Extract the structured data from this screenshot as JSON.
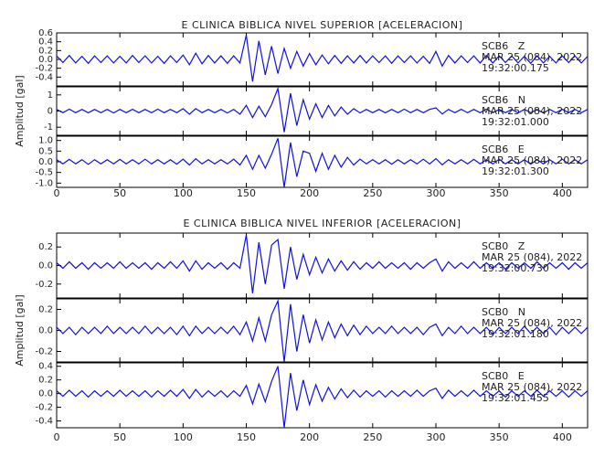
{
  "chart_data": [
    {
      "type": "line",
      "title": "E CLINICA BIBLICA NIVEL SUPERIOR [ACELERACION]",
      "ylabel": "Amplitud [gal]",
      "color": "#1010e0",
      "x": [
        0,
        5,
        10,
        15,
        20,
        25,
        30,
        35,
        40,
        45,
        50,
        55,
        60,
        65,
        70,
        75,
        80,
        85,
        90,
        95,
        100,
        105,
        110,
        115,
        120,
        125,
        130,
        135,
        140,
        145,
        150,
        155,
        160,
        165,
        170,
        175,
        180,
        185,
        190,
        195,
        200,
        205,
        210,
        215,
        220,
        225,
        230,
        235,
        240,
        245,
        250,
        255,
        260,
        265,
        270,
        275,
        280,
        285,
        290,
        295,
        300,
        305,
        310,
        315,
        320,
        325,
        330,
        335,
        340,
        345,
        350,
        355,
        360,
        365,
        370,
        375,
        380,
        385,
        390,
        395,
        400,
        405,
        410,
        415,
        420
      ],
      "xlim": [
        0,
        420
      ],
      "xticks": [
        0,
        50,
        100,
        150,
        200,
        250,
        300,
        350,
        400
      ],
      "panels": [
        {
          "lines": [
            "SCB6   Z",
            "MAR 25 (084), 2022",
            "19:32:00.175"
          ],
          "ylim": [
            -0.6,
            0.6
          ],
          "yticks": [
            -0.4,
            -0.2,
            {
              "value": 0,
              "label": "0.0"
            },
            0.2,
            0.4,
            0.6
          ],
          "values": [
            0.08,
            -0.07,
            0.09,
            -0.08,
            0.07,
            -0.09,
            0.08,
            -0.07,
            0.08,
            -0.08,
            0.07,
            -0.08,
            0.09,
            -0.07,
            0.08,
            -0.08,
            0.07,
            -0.09,
            0.08,
            -0.07,
            0.1,
            -0.12,
            0.14,
            -0.1,
            0.09,
            -0.08,
            0.08,
            -0.09,
            0.08,
            -0.08,
            0.55,
            -0.5,
            0.42,
            -0.35,
            0.3,
            -0.32,
            0.25,
            -0.2,
            0.18,
            -0.15,
            0.13,
            -0.12,
            0.1,
            -0.1,
            0.09,
            -0.09,
            0.08,
            -0.08,
            0.09,
            -0.08,
            0.08,
            -0.07,
            0.08,
            -0.09,
            0.08,
            -0.07,
            0.08,
            -0.08,
            0.07,
            -0.09,
            0.18,
            -0.15,
            0.09,
            -0.08,
            0.08,
            -0.07,
            0.08,
            -0.08,
            0.09,
            -0.08,
            0.08,
            -0.07,
            0.08,
            -0.08,
            0.07,
            -0.09,
            0.08,
            -0.08,
            0.07,
            -0.08,
            0.08,
            -0.07,
            0.08,
            -0.08,
            0.07
          ]
        },
        {
          "lines": [
            "SCB6   N",
            "MAR 25 (084), 2022",
            "19:32:01.000"
          ],
          "ylim": [
            -1.5,
            1.5
          ],
          "yticks": [
            -1,
            0,
            1
          ],
          "values": [
            0.1,
            -0.1,
            0.12,
            -0.1,
            0.1,
            -0.11,
            0.1,
            -0.1,
            0.1,
            -0.12,
            0.1,
            -0.1,
            0.11,
            -0.1,
            0.1,
            -0.1,
            0.12,
            -0.1,
            0.1,
            -0.1,
            0.15,
            -0.2,
            0.15,
            -0.1,
            0.1,
            -0.1,
            0.1,
            -0.12,
            0.1,
            -0.2,
            0.35,
            -0.4,
            0.3,
            -0.35,
            0.4,
            1.4,
            -1.3,
            1.1,
            -0.9,
            0.7,
            -0.5,
            0.45,
            -0.4,
            0.35,
            -0.3,
            0.25,
            -0.2,
            0.15,
            -0.12,
            0.1,
            -0.1,
            0.1,
            -0.11,
            0.1,
            -0.1,
            0.12,
            -0.1,
            0.1,
            -0.1,
            0.1,
            0.2,
            -0.18,
            0.1,
            -0.1,
            0.11,
            -0.1,
            0.1,
            -0.1,
            0.12,
            -0.1,
            0.1,
            -0.1,
            0.1,
            -0.11,
            0.1,
            -0.1,
            0.1,
            -0.12,
            0.1,
            -0.1,
            0.11,
            -0.1,
            0.1,
            -0.1,
            0.1
          ]
        },
        {
          "lines": [
            "SCB6   E",
            "MAR 25 (084), 2022",
            "19:32:01.300"
          ],
          "ylim": [
            -1.2,
            1.2
          ],
          "yticks": [
            {
              "value": -1,
              "label": "-1.0"
            },
            -0.5,
            {
              "value": 0,
              "label": "0.0"
            },
            0.5,
            {
              "value": 1,
              "label": "1.0"
            }
          ],
          "values": [
            0.1,
            -0.1,
            0.11,
            -0.1,
            0.1,
            -0.12,
            0.1,
            -0.1,
            0.1,
            -0.1,
            0.11,
            -0.1,
            0.1,
            -0.1,
            0.12,
            -0.1,
            0.1,
            -0.1,
            0.1,
            -0.11,
            0.12,
            -0.15,
            0.14,
            -0.1,
            0.1,
            -0.1,
            0.1,
            -0.1,
            0.12,
            -0.15,
            0.3,
            -0.35,
            0.3,
            -0.3,
            0.35,
            1.1,
            -1.2,
            0.9,
            -0.7,
            0.5,
            0.4,
            -0.45,
            0.4,
            -0.35,
            0.3,
            -0.25,
            0.2,
            -0.15,
            0.12,
            -0.1,
            0.1,
            -0.1,
            0.1,
            -0.11,
            0.1,
            -0.1,
            0.1,
            -0.1,
            0.12,
            -0.1,
            0.15,
            -0.14,
            0.1,
            -0.1,
            0.1,
            -0.1,
            0.11,
            -0.1,
            0.1,
            -0.1,
            0.12,
            -0.1,
            0.1,
            -0.1,
            0.1,
            -0.11,
            0.1,
            -0.1,
            0.1,
            -0.1,
            0.12,
            -0.1,
            0.1,
            -0.1,
            0.1
          ]
        }
      ]
    },
    {
      "type": "line",
      "title": "E CLINICA BIBLICA NIVEL INFERIOR [ACELERACION]",
      "ylabel": "Amplitud [gal]",
      "color": "#1010e0",
      "x": [
        0,
        5,
        10,
        15,
        20,
        25,
        30,
        35,
        40,
        45,
        50,
        55,
        60,
        65,
        70,
        75,
        80,
        85,
        90,
        95,
        100,
        105,
        110,
        115,
        120,
        125,
        130,
        135,
        140,
        145,
        150,
        155,
        160,
        165,
        170,
        175,
        180,
        185,
        190,
        195,
        200,
        205,
        210,
        215,
        220,
        225,
        230,
        235,
        240,
        245,
        250,
        255,
        260,
        265,
        270,
        275,
        280,
        285,
        290,
        295,
        300,
        305,
        310,
        315,
        320,
        325,
        330,
        335,
        340,
        345,
        350,
        355,
        360,
        365,
        370,
        375,
        380,
        385,
        390,
        395,
        400,
        405,
        410,
        415,
        420
      ],
      "xlim": [
        0,
        420
      ],
      "xticks": [
        0,
        50,
        100,
        150,
        200,
        250,
        300,
        350,
        400
      ],
      "panels": [
        {
          "lines": [
            "SCB0   Z",
            "MAR 25 (084), 2022",
            "19:32:00.730"
          ],
          "ylim": [
            -0.35,
            0.35
          ],
          "yticks": [
            -0.2,
            {
              "value": 0,
              "label": "0.0"
            },
            0.2
          ],
          "values": [
            0.03,
            -0.03,
            0.04,
            -0.03,
            0.03,
            -0.04,
            0.03,
            -0.03,
            0.03,
            -0.03,
            0.04,
            -0.03,
            0.03,
            -0.03,
            0.03,
            -0.04,
            0.03,
            -0.03,
            0.04,
            -0.03,
            0.05,
            -0.06,
            0.05,
            -0.04,
            0.03,
            -0.03,
            0.03,
            -0.04,
            0.03,
            -0.03,
            0.33,
            -0.3,
            0.25,
            -0.2,
            0.22,
            0.28,
            -0.25,
            0.2,
            -0.15,
            0.12,
            -0.1,
            0.09,
            -0.08,
            0.07,
            -0.06,
            0.05,
            -0.05,
            0.04,
            -0.04,
            0.03,
            -0.03,
            0.04,
            -0.03,
            0.03,
            -0.03,
            0.03,
            -0.04,
            0.03,
            -0.03,
            0.03,
            0.07,
            -0.06,
            0.04,
            -0.03,
            0.03,
            -0.03,
            0.04,
            -0.03,
            0.03,
            -0.03,
            0.03,
            -0.04,
            0.03,
            -0.03,
            0.03,
            -0.03,
            0.04,
            -0.03,
            0.03,
            -0.03,
            0.03,
            -0.04,
            0.03,
            -0.03,
            0.03
          ]
        },
        {
          "lines": [
            "SCB0   N",
            "MAR 25 (084), 2022",
            "19:32:01.180"
          ],
          "ylim": [
            -0.3,
            0.3
          ],
          "yticks": [
            -0.2,
            {
              "value": 0,
              "label": "0.0"
            },
            0.2
          ],
          "values": [
            0.03,
            -0.03,
            0.03,
            -0.04,
            0.03,
            -0.03,
            0.03,
            -0.03,
            0.04,
            -0.03,
            0.03,
            -0.03,
            0.03,
            -0.03,
            0.04,
            -0.03,
            0.03,
            -0.03,
            0.03,
            -0.04,
            0.04,
            -0.05,
            0.04,
            -0.03,
            0.03,
            -0.03,
            0.03,
            -0.03,
            0.04,
            -0.04,
            0.08,
            -0.1,
            0.12,
            -0.1,
            0.15,
            0.28,
            -0.3,
            0.25,
            -0.2,
            0.15,
            -0.12,
            0.1,
            -0.09,
            0.08,
            -0.07,
            0.06,
            -0.05,
            0.05,
            -0.04,
            0.04,
            -0.03,
            0.03,
            -0.03,
            0.04,
            -0.03,
            0.03,
            -0.03,
            0.03,
            -0.04,
            0.03,
            0.06,
            -0.05,
            0.03,
            -0.03,
            0.04,
            -0.03,
            0.03,
            -0.03,
            0.03,
            -0.04,
            0.03,
            -0.03,
            0.03,
            -0.03,
            0.04,
            -0.03,
            0.03,
            -0.03,
            0.03,
            -0.04,
            0.03,
            -0.03,
            0.03,
            -0.03,
            0.03
          ]
        },
        {
          "lines": [
            "SCB0   E",
            "MAR 25 (084), 2022",
            "19:32:01.455"
          ],
          "ylim": [
            -0.5,
            0.45
          ],
          "yticks": [
            -0.4,
            -0.2,
            {
              "value": 0,
              "label": "0.0"
            },
            0.2,
            0.4
          ],
          "values": [
            0.04,
            -0.04,
            0.05,
            -0.04,
            0.04,
            -0.05,
            0.04,
            -0.04,
            0.04,
            -0.04,
            0.05,
            -0.04,
            0.04,
            -0.04,
            0.04,
            -0.05,
            0.04,
            -0.04,
            0.05,
            -0.04,
            0.06,
            -0.07,
            0.06,
            -0.05,
            0.04,
            -0.04,
            0.04,
            -0.05,
            0.04,
            -0.04,
            0.12,
            -0.15,
            0.14,
            -0.12,
            0.18,
            0.4,
            -0.5,
            0.3,
            -0.25,
            0.2,
            -0.16,
            0.13,
            -0.11,
            0.09,
            -0.08,
            0.07,
            -0.06,
            0.05,
            -0.05,
            0.04,
            -0.04,
            0.04,
            -0.05,
            0.04,
            -0.04,
            0.04,
            -0.04,
            0.05,
            -0.04,
            0.04,
            0.08,
            -0.07,
            0.05,
            -0.04,
            0.04,
            -0.04,
            0.05,
            -0.04,
            0.04,
            -0.04,
            0.04,
            -0.05,
            0.04,
            -0.04,
            0.04,
            -0.04,
            0.05,
            -0.04,
            0.04,
            -0.04,
            0.04,
            -0.05,
            0.04,
            -0.04,
            0.04
          ]
        }
      ]
    }
  ]
}
